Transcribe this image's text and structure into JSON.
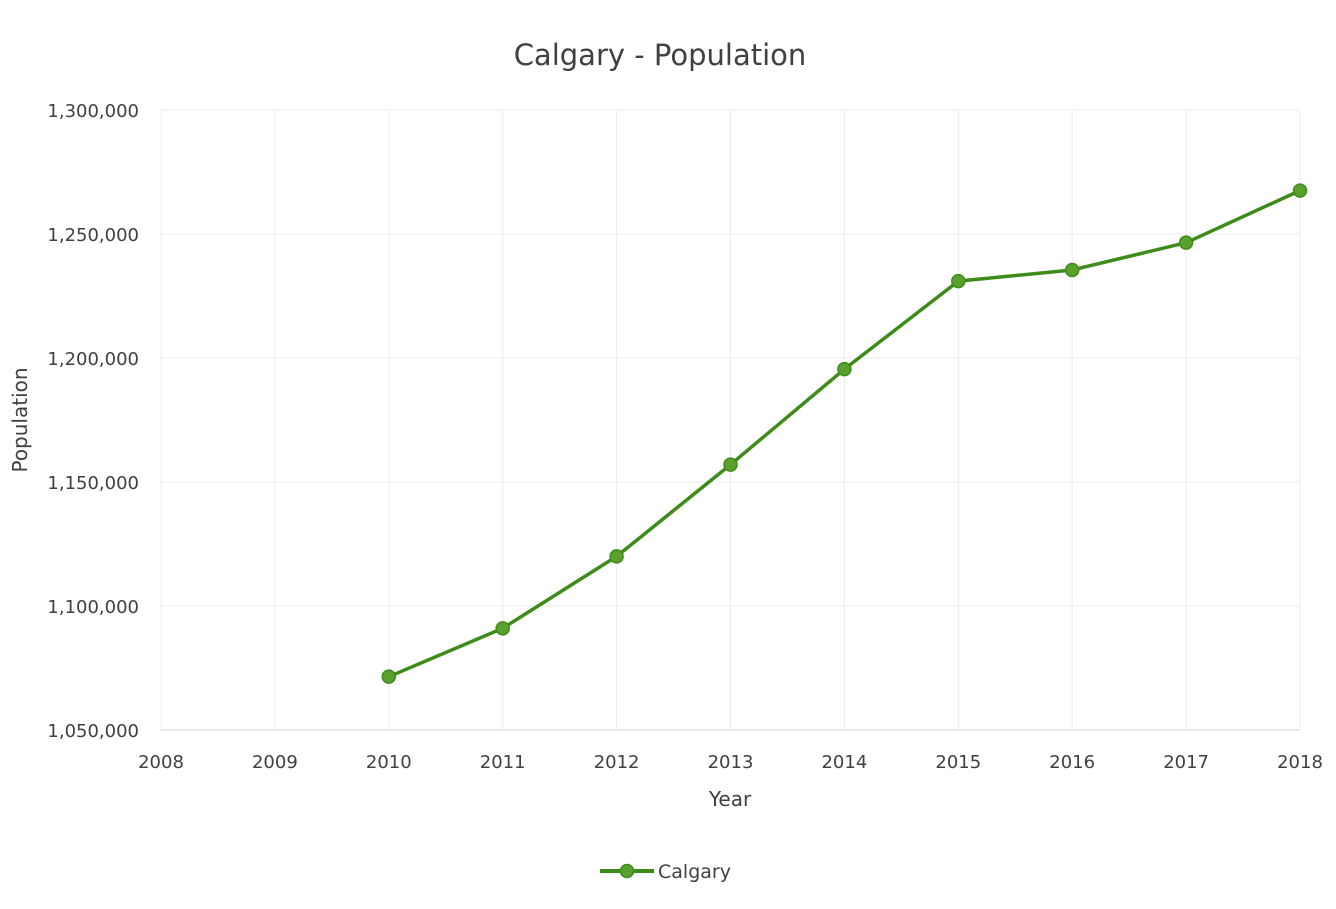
{
  "chart_data": {
    "type": "line",
    "title": "Calgary - Population",
    "xlabel": "Year",
    "ylabel": "Population",
    "xlim": [
      2008,
      2018
    ],
    "ylim": [
      1050000,
      1300000
    ],
    "x_ticks": [
      "2008",
      "2009",
      "2010",
      "2011",
      "2012",
      "2013",
      "2014",
      "2015",
      "2016",
      "2017",
      "2018"
    ],
    "y_ticks": [
      "1,050,000",
      "1,100,000",
      "1,150,000",
      "1,200,000",
      "1,250,000",
      "1,300,000"
    ],
    "grid": true,
    "legend_position": "bottom",
    "series": [
      {
        "name": "Calgary",
        "color": "#3d8c1a",
        "x": [
          2010,
          2011,
          2012,
          2013,
          2014,
          2015,
          2016,
          2017,
          2018
        ],
        "values": [
          1071500,
          1091000,
          1120000,
          1157000,
          1195500,
          1231000,
          1235500,
          1246500,
          1267500
        ]
      }
    ]
  }
}
